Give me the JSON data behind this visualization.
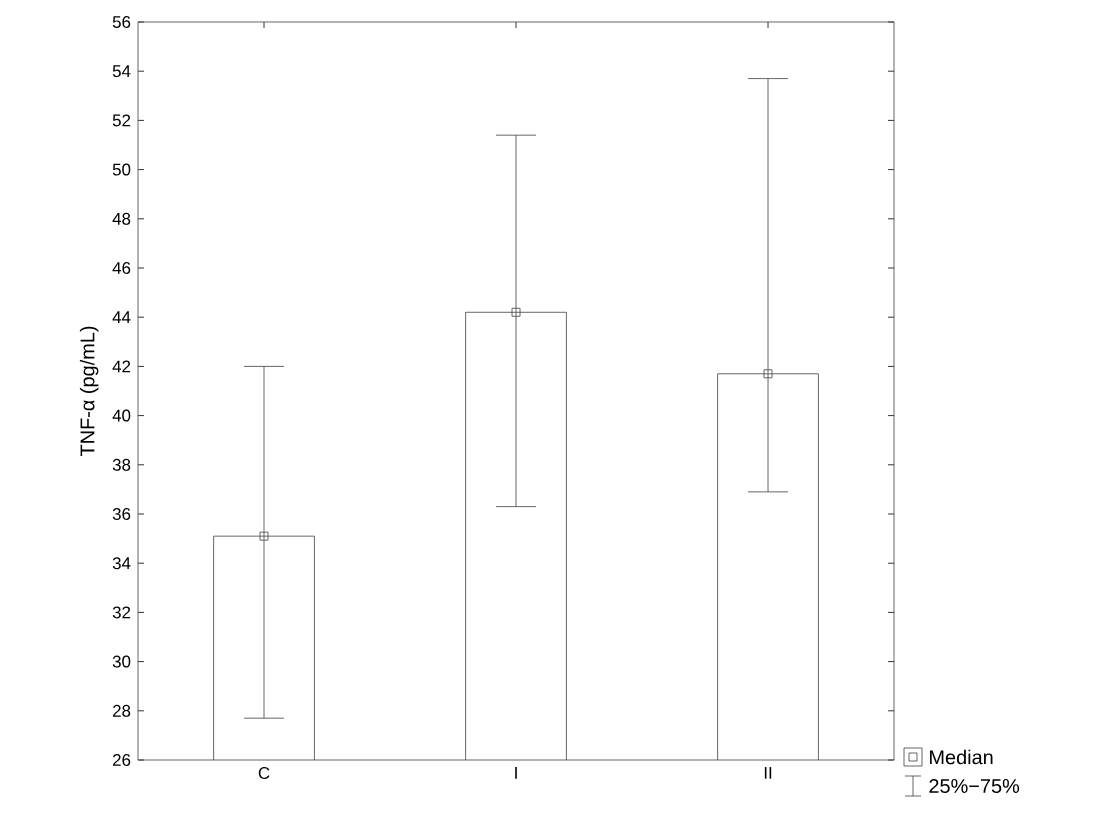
{
  "chart_data": {
    "type": "bar",
    "ylabel": "TNF-α (pg/mL)",
    "categories": [
      "C",
      "I",
      "II"
    ],
    "series": [
      {
        "color": "#ffffff",
        "values": [
          35.1,
          44.2,
          41.7
        ],
        "errors": [
          [
            27.7,
            42.0
          ],
          [
            36.3,
            51.4
          ],
          [
            36.9,
            53.7
          ]
        ]
      },
      {
        "type": "scatter",
        "name": "Median",
        "color": "#404040",
        "x": [
          "C",
          "I",
          "II"
        ],
        "values": [
          35.1,
          44.2,
          41.7
        ]
      }
    ],
    "ylim": [
      26,
      56
    ],
    "yticks": [
      26,
      28,
      30,
      32,
      34,
      36,
      38,
      40,
      42,
      44,
      46,
      48,
      50,
      52,
      54,
      56
    ],
    "marker": "square",
    "legend": "bottom right",
    "grid": false,
    "annotations": [
      "25%−75%"
    ]
  }
}
